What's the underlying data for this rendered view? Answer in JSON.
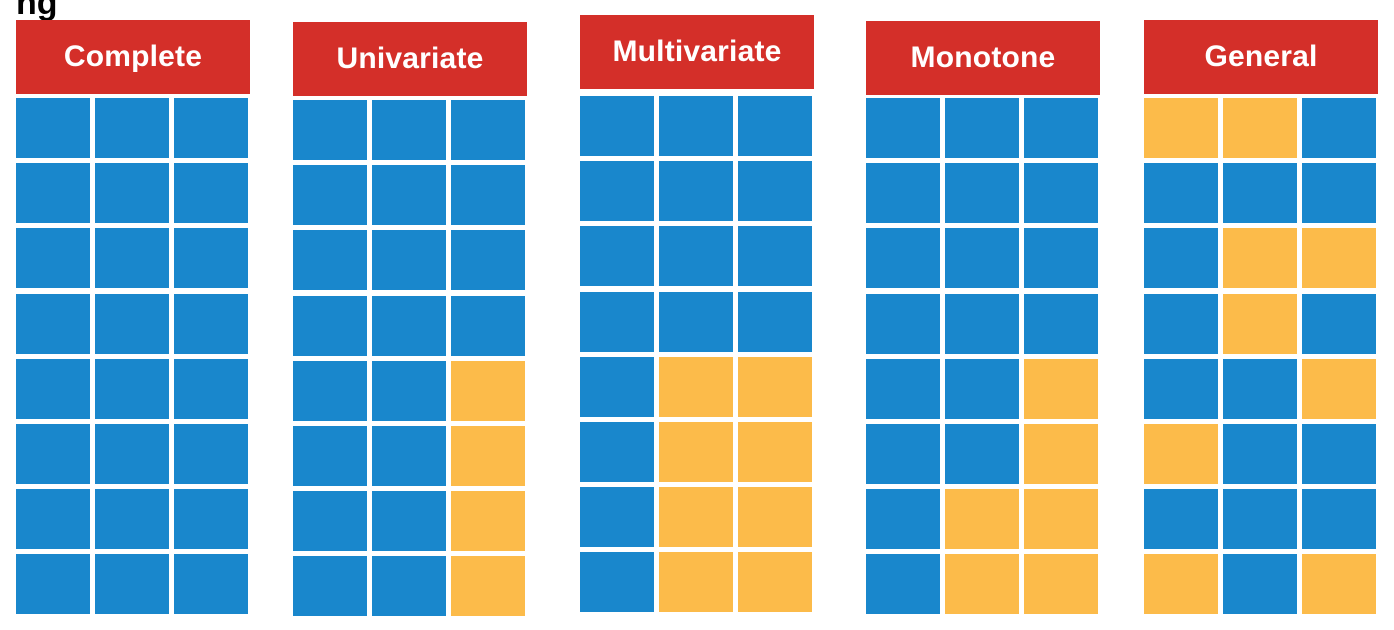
{
  "heading_fragment": "ng",
  "colors": {
    "header": "#d42f29",
    "observed": "#1987cc",
    "missing": "#fcbb4a"
  },
  "legend_keys": {
    "B": "observed",
    "Y": "missing"
  },
  "panels": [
    {
      "title": "Complete",
      "rows": [
        "BBB",
        "BBB",
        "BBB",
        "BBB",
        "BBB",
        "BBB",
        "BBB",
        "BBB"
      ]
    },
    {
      "title": "Univariate",
      "rows": [
        "BBB",
        "BBB",
        "BBB",
        "BBB",
        "BBY",
        "BBY",
        "BBY",
        "BBY"
      ]
    },
    {
      "title": "Multivariate",
      "rows": [
        "BBB",
        "BBB",
        "BBB",
        "BBB",
        "BYY",
        "BYY",
        "BYY",
        "BYY"
      ]
    },
    {
      "title": "Monotone",
      "rows": [
        "BBB",
        "BBB",
        "BBB",
        "BBB",
        "BBY",
        "BBY",
        "BYY",
        "BYY"
      ]
    },
    {
      "title": "General",
      "rows": [
        "YYB",
        "BBB",
        "BYY",
        "BYB",
        "BBY",
        "YBB",
        "BBB",
        "YBY"
      ]
    }
  ]
}
